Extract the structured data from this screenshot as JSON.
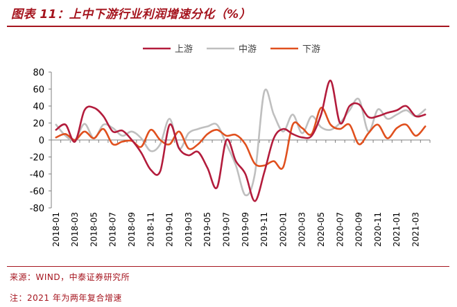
{
  "title": "图表 11：上中下游行业利润增速分化（%）",
  "source": "来源：WIND，中泰证券研究所",
  "note": "注：2021 年为两年复合增速",
  "colors": {
    "upstream": "#b31c3c",
    "midstream": "#bfbfbf",
    "downstream": "#e0501e",
    "brand": "#a5141e"
  },
  "chart_data": {
    "type": "line",
    "title": "",
    "xlabel": "",
    "ylabel": "",
    "ylim": [
      -80,
      80
    ],
    "yticks": [
      80,
      60,
      40,
      20,
      0,
      -20,
      -40,
      -60,
      -80
    ],
    "ytick_labels": [
      "80",
      "60",
      "40",
      "20",
      "0",
      "-20",
      "-40",
      "-60",
      "-80"
    ],
    "grid": false,
    "legend": "top-center",
    "x": [
      "2018-01",
      "2018-02",
      "2018-03",
      "2018-04",
      "2018-05",
      "2018-06",
      "2018-07",
      "2018-08",
      "2018-09",
      "2018-10",
      "2018-11",
      "2018-12",
      "2019-01",
      "2019-02",
      "2019-03",
      "2019-04",
      "2019-05",
      "2019-06",
      "2019-07",
      "2019-08",
      "2019-09",
      "2019-10",
      "2019-11",
      "2019-12",
      "2020-01",
      "2020-02",
      "2020-03",
      "2020-04",
      "2020-05",
      "2020-06",
      "2020-07",
      "2020-08",
      "2020-09",
      "2020-10",
      "2020-11",
      "2020-12",
      "2021-01",
      "2021-02",
      "2021-03",
      "2021-04"
    ],
    "xtick_labels": [
      "2018-01",
      "2018-03",
      "2018-05",
      "2018-07",
      "2018-09",
      "2018-11",
      "2019-01",
      "2019-03",
      "2019-05",
      "2019-07",
      "2019-09",
      "2019-11",
      "2020-01",
      "2020-03",
      "2020-05",
      "2020-07",
      "2020-09",
      "2020-11",
      "2021-01",
      "2021-03"
    ],
    "series": [
      {
        "name": "上游",
        "key": "upstream",
        "values": [
          12,
          18,
          -2,
          35,
          38,
          28,
          10,
          11,
          0,
          -15,
          -35,
          -37,
          18,
          -10,
          -18,
          -14,
          -33,
          -56,
          0,
          -25,
          -40,
          -72,
          -38,
          2,
          13,
          7,
          3,
          5,
          30,
          70,
          20,
          40,
          42,
          27,
          28,
          32,
          35,
          40,
          28,
          30
        ]
      },
      {
        "name": "中游",
        "key": "midstream",
        "values": [
          18,
          5,
          0,
          19,
          2,
          18,
          14,
          5,
          10,
          2,
          -13,
          -5,
          25,
          -10,
          8,
          13,
          16,
          18,
          -5,
          -30,
          -65,
          -40,
          57,
          30,
          10,
          30,
          8,
          28,
          15,
          12,
          20,
          35,
          48,
          10,
          36,
          25,
          30,
          35,
          28,
          36
        ]
      },
      {
        "name": "下游",
        "key": "downstream",
        "values": [
          3,
          7,
          0,
          10,
          2,
          13,
          -5,
          -2,
          -1,
          -8,
          12,
          0,
          -5,
          10,
          -10,
          -5,
          7,
          12,
          5,
          6,
          -5,
          -28,
          -30,
          -25,
          -32,
          18,
          14,
          7,
          38,
          18,
          13,
          18,
          -5,
          8,
          18,
          2,
          14,
          18,
          5,
          16
        ]
      }
    ]
  }
}
